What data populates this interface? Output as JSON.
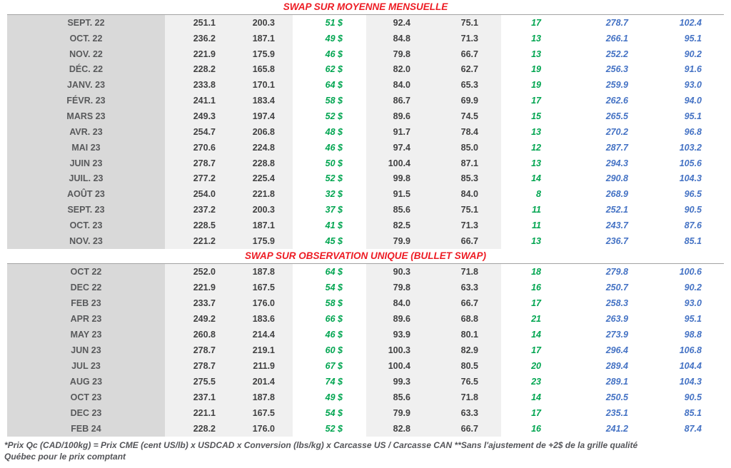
{
  "section1": {
    "title": "SWAP SUR MOYENNE MENSUELLE",
    "rows": [
      [
        "SEPT. 22",
        "251.1",
        "200.3",
        "51 $",
        "92.4",
        "75.1",
        "17",
        "278.7",
        "102.4"
      ],
      [
        "OCT. 22",
        "236.2",
        "187.1",
        "49 $",
        "84.8",
        "71.3",
        "13",
        "266.1",
        "95.1"
      ],
      [
        "NOV. 22",
        "221.9",
        "175.9",
        "46 $",
        "79.8",
        "66.7",
        "13",
        "252.2",
        "90.2"
      ],
      [
        "DÉC. 22",
        "228.2",
        "165.8",
        "62 $",
        "82.0",
        "62.7",
        "19",
        "256.3",
        "91.6"
      ],
      [
        "JANV. 23",
        "233.8",
        "170.1",
        "64 $",
        "84.0",
        "65.3",
        "19",
        "259.9",
        "93.0"
      ],
      [
        "FÉVR. 23",
        "241.1",
        "183.4",
        "58 $",
        "86.7",
        "69.9",
        "17",
        "262.6",
        "94.0"
      ],
      [
        "MARS 23",
        "249.3",
        "197.4",
        "52 $",
        "89.6",
        "74.5",
        "15",
        "265.5",
        "95.1"
      ],
      [
        "AVR. 23",
        "254.7",
        "206.8",
        "48 $",
        "91.7",
        "78.4",
        "13",
        "270.2",
        "96.8"
      ],
      [
        "MAI 23",
        "270.6",
        "224.8",
        "46 $",
        "97.4",
        "85.0",
        "12",
        "287.7",
        "103.2"
      ],
      [
        "JUIN 23",
        "278.7",
        "228.8",
        "50 $",
        "100.4",
        "87.1",
        "13",
        "294.3",
        "105.6"
      ],
      [
        "JUIL. 23",
        "277.2",
        "225.4",
        "52 $",
        "99.8",
        "85.3",
        "14",
        "290.8",
        "104.3"
      ],
      [
        "AOÛT 23",
        "254.0",
        "221.8",
        "32 $",
        "91.5",
        "84.0",
        "8",
        "268.9",
        "96.5"
      ],
      [
        "SEPT. 23",
        "237.2",
        "200.3",
        "37 $",
        "85.6",
        "75.1",
        "11",
        "252.1",
        "90.5"
      ],
      [
        "OCT. 23",
        "228.5",
        "187.1",
        "41 $",
        "82.5",
        "71.3",
        "11",
        "243.7",
        "87.6"
      ],
      [
        "NOV. 23",
        "221.2",
        "175.9",
        "45 $",
        "79.9",
        "66.7",
        "13",
        "236.7",
        "85.1"
      ]
    ]
  },
  "section2": {
    "title": "SWAP SUR OBSERVATION UNIQUE (BULLET SWAP)",
    "rows": [
      [
        "OCT 22",
        "252.0",
        "187.8",
        "64 $",
        "90.3",
        "71.8",
        "18",
        "279.8",
        "100.6"
      ],
      [
        "DEC 22",
        "221.9",
        "167.5",
        "54 $",
        "79.8",
        "63.3",
        "16",
        "250.7",
        "90.2"
      ],
      [
        "FEB 23",
        "233.7",
        "176.0",
        "58 $",
        "84.0",
        "66.7",
        "17",
        "258.3",
        "93.0"
      ],
      [
        "APR 23",
        "249.2",
        "183.6",
        "66 $",
        "89.6",
        "68.8",
        "21",
        "263.9",
        "95.1"
      ],
      [
        "MAY 23",
        "260.8",
        "214.4",
        "46 $",
        "93.9",
        "80.1",
        "14",
        "273.9",
        "98.8"
      ],
      [
        "JUN 23",
        "278.7",
        "219.1",
        "60 $",
        "100.3",
        "82.9",
        "17",
        "296.4",
        "106.8"
      ],
      [
        "JUL 23",
        "278.7",
        "211.9",
        "67 $",
        "100.4",
        "80.5",
        "20",
        "289.4",
        "104.4"
      ],
      [
        "AUG 23",
        "275.5",
        "201.4",
        "74 $",
        "99.3",
        "76.5",
        "23",
        "289.1",
        "104.3"
      ],
      [
        "OCT 23",
        "237.1",
        "187.8",
        "49 $",
        "85.6",
        "71.8",
        "14",
        "250.5",
        "90.5"
      ],
      [
        "DEC 23",
        "221.1",
        "167.5",
        "54 $",
        "79.9",
        "63.3",
        "17",
        "235.1",
        "85.1"
      ],
      [
        "FEB 24",
        "228.2",
        "176.0",
        "52 $",
        "82.8",
        "66.7",
        "16",
        "241.2",
        "87.4"
      ]
    ]
  },
  "footnote": {
    "line1": "*Prix Qc (CAD/100kg) = Prix CME (cent US/lb) x USDCAD x Conversion (lbs/kg) x Carcasse US / Carcasse CAN **Sans l'ajustement de +2$ de la grille qualité",
    "line2": "Québec pour le prix comptant"
  },
  "colors": {
    "title_red": "#ed1c24",
    "swap_green": "#00a550",
    "price_blue": "#4472c4",
    "month_band_gray": "#d9d9d9",
    "value_band_gray": "#f0f0f0"
  }
}
